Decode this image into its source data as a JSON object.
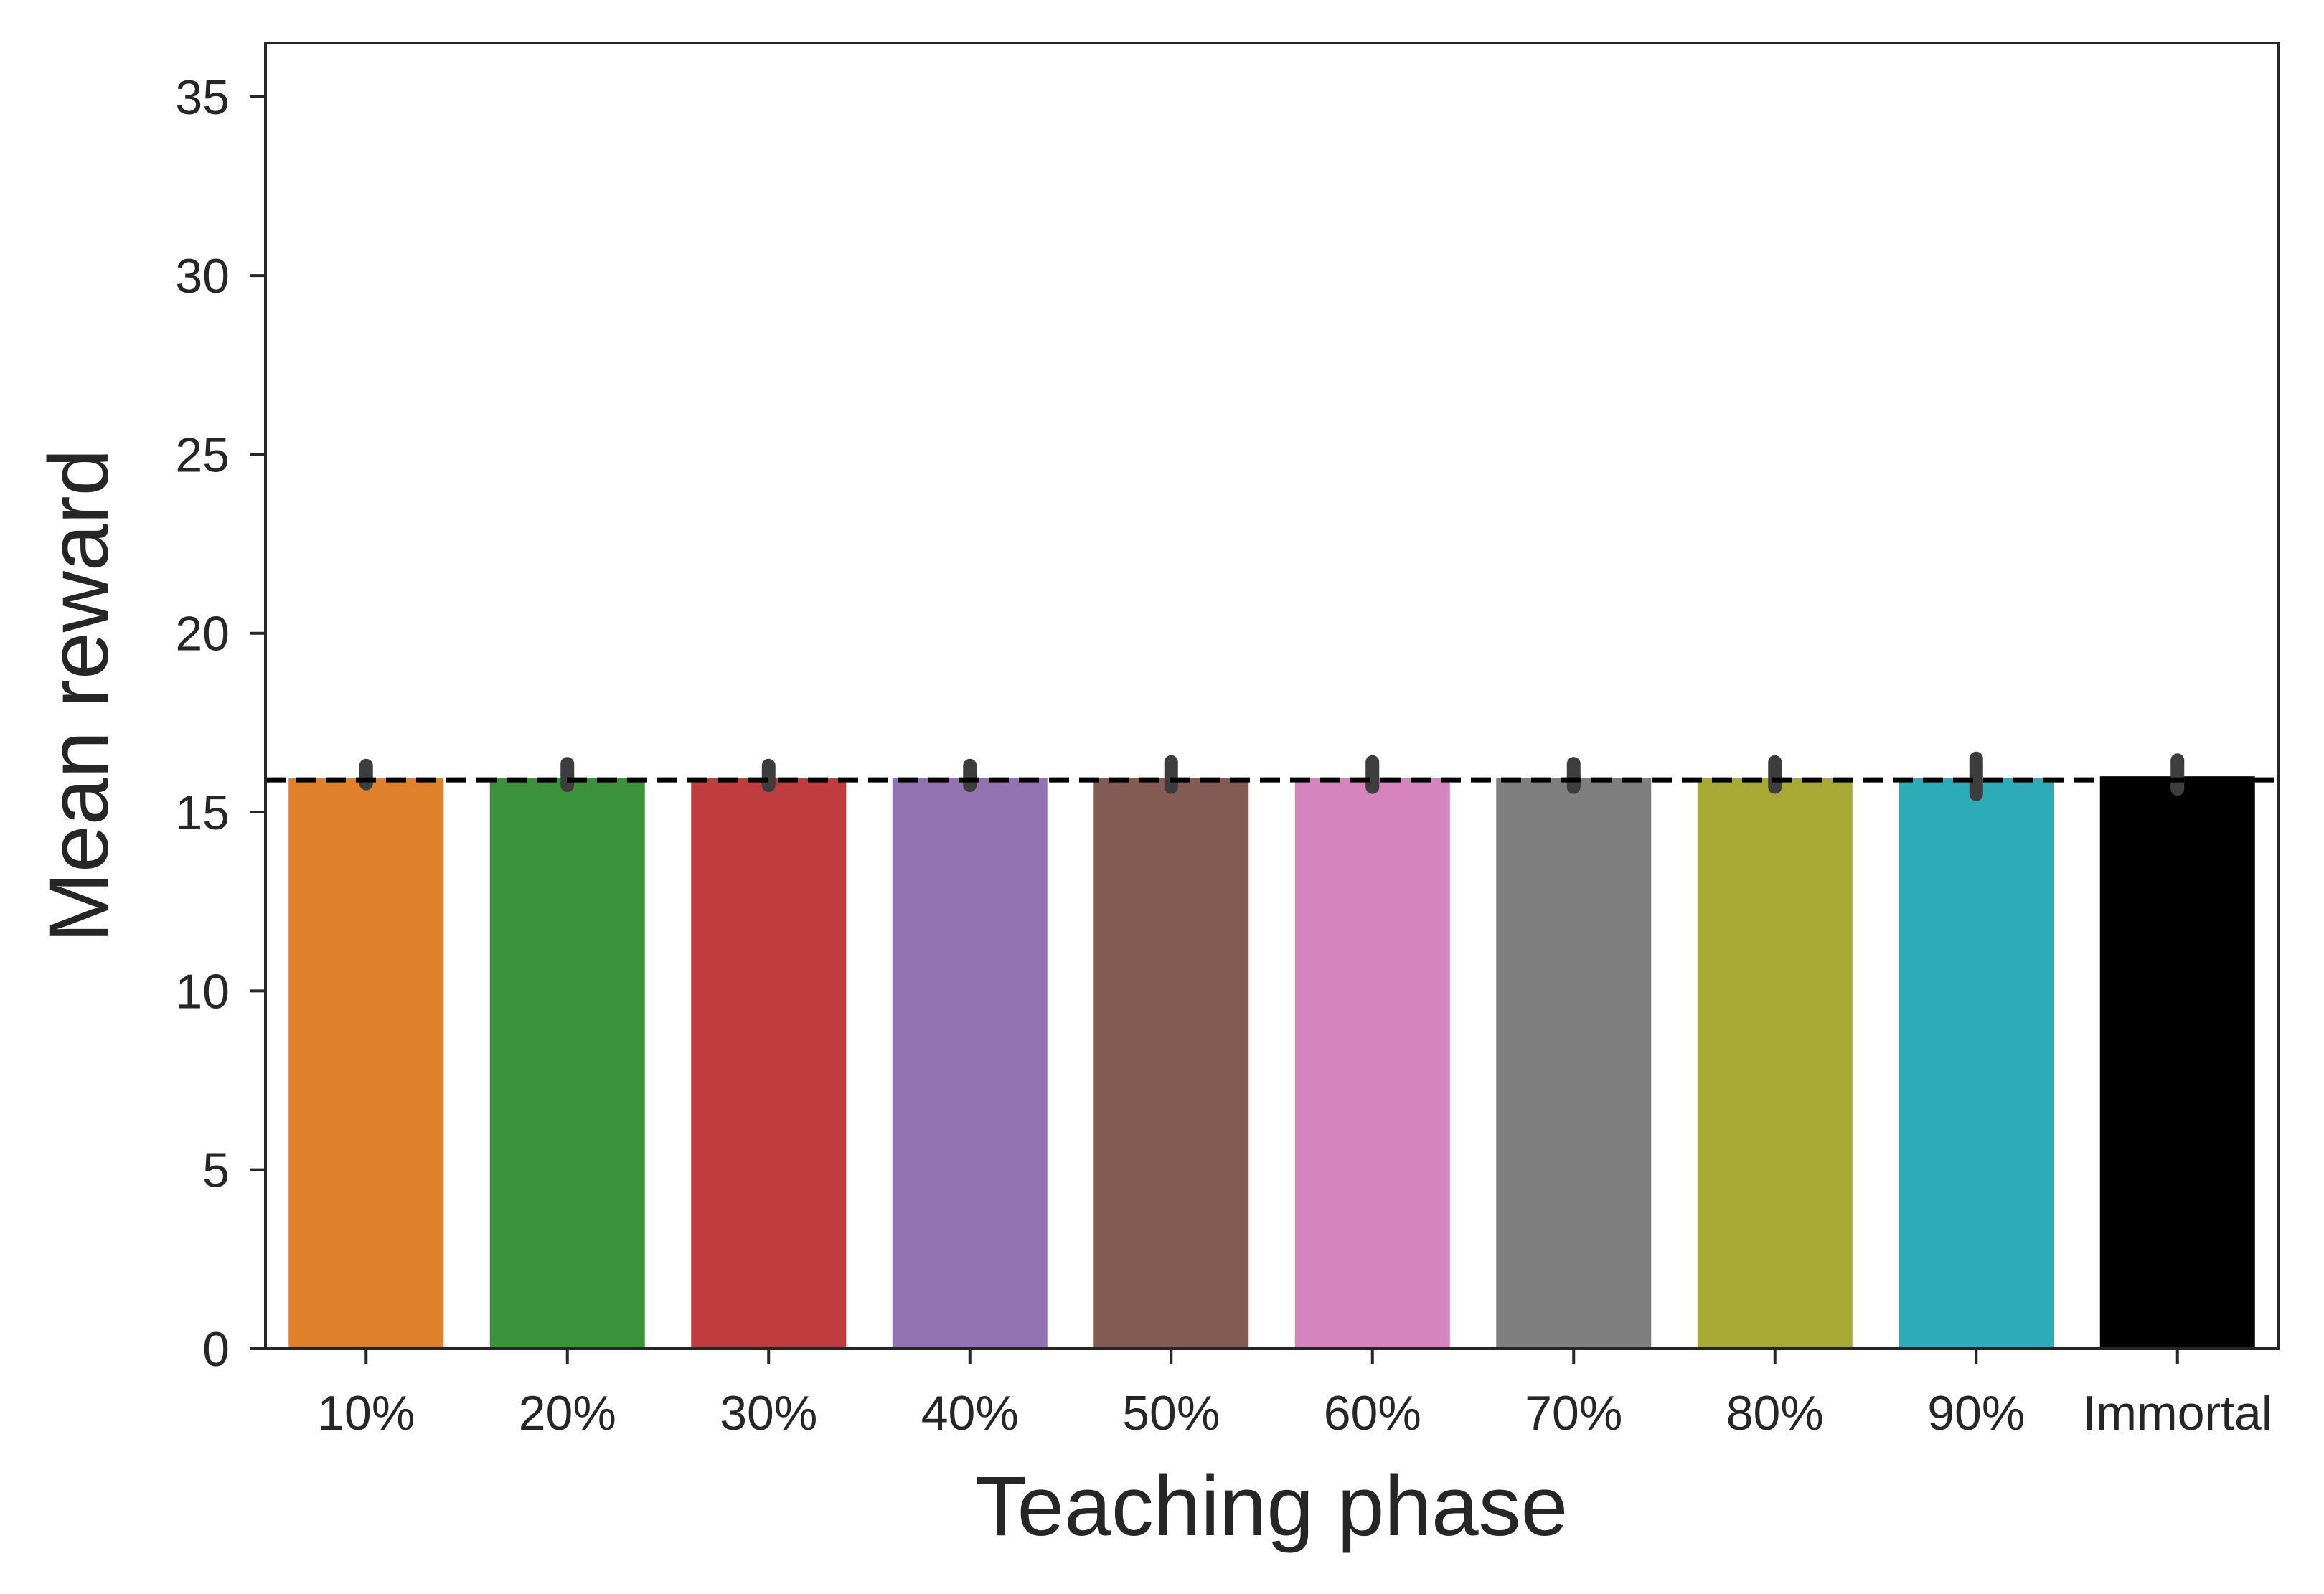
{
  "chart_data": {
    "type": "bar",
    "title": "",
    "xlabel": "Teaching phase",
    "ylabel": "Mean reward",
    "ylim": [
      0,
      36.5
    ],
    "yticks": [
      0,
      5,
      10,
      15,
      20,
      25,
      30,
      35
    ],
    "categories": [
      "10%",
      "20%",
      "30%",
      "40%",
      "50%",
      "60%",
      "70%",
      "80%",
      "90%",
      "Immortal"
    ],
    "values": [
      15.95,
      15.95,
      15.95,
      15.95,
      15.95,
      15.95,
      15.95,
      15.95,
      15.95,
      16.0
    ],
    "error_low": [
      15.8,
      15.75,
      15.75,
      15.75,
      15.7,
      15.7,
      15.7,
      15.7,
      15.5,
      15.65
    ],
    "error_high": [
      16.3,
      16.35,
      16.3,
      16.3,
      16.4,
      16.4,
      16.35,
      16.4,
      16.5,
      16.45
    ],
    "colors": [
      "#e1812c",
      "#3a923a",
      "#c03d3e",
      "#9372b2",
      "#845b53",
      "#d684bd",
      "#7f7f7f",
      "#a9aa35",
      "#2eabb8",
      "#000000"
    ],
    "reference_line": {
      "y": 15.9,
      "style": "dashed",
      "color": "#000000"
    },
    "grid": false,
    "legend": "none"
  }
}
